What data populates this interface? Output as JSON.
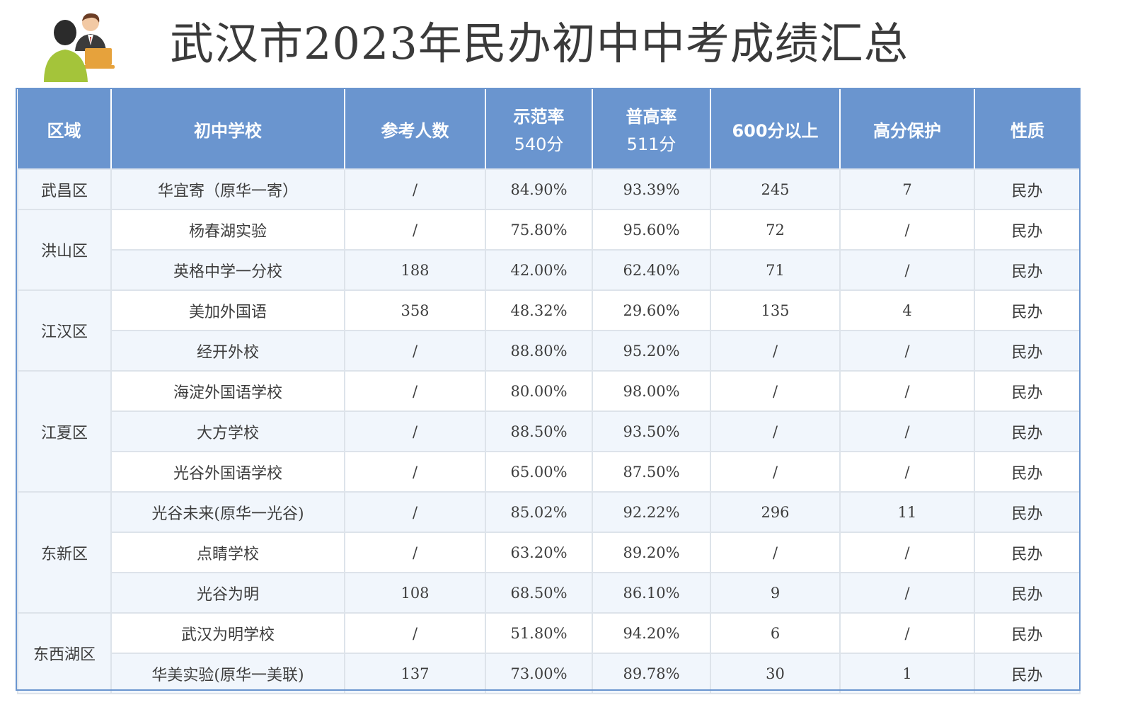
{
  "title": "武汉市2023年民办初中中考成绩汇总",
  "logo_icon": "people-with-laptop-icon",
  "colors": {
    "header_bg": "#6a95cf",
    "header_text": "#ffffff",
    "shade_row": "#f1f6fc",
    "body_text": "#3d3d3d"
  },
  "table": {
    "headers": [
      {
        "label": "区域",
        "sub": ""
      },
      {
        "label": "初中学校",
        "sub": ""
      },
      {
        "label": "参考人数",
        "sub": ""
      },
      {
        "label": "示范率",
        "sub": "540分"
      },
      {
        "label": "普高率",
        "sub": "511分"
      },
      {
        "label": "600分以上",
        "sub": ""
      },
      {
        "label": "高分保护",
        "sub": ""
      },
      {
        "label": "性质",
        "sub": ""
      }
    ],
    "districts": [
      {
        "name": "武昌区",
        "rows": [
          {
            "school": "华宜寄（原华一寄）",
            "count": "/",
            "demo": "84.90%",
            "general": "93.39%",
            "above600": "245",
            "protect": "7",
            "type": "民办"
          }
        ]
      },
      {
        "name": "洪山区",
        "rows": [
          {
            "school": "杨春湖实验",
            "count": "/",
            "demo": "75.80%",
            "general": "95.60%",
            "above600": "72",
            "protect": "/",
            "type": "民办"
          },
          {
            "school": "英格中学一分校",
            "count": "188",
            "demo": "42.00%",
            "general": "62.40%",
            "above600": "71",
            "protect": "/",
            "type": "民办"
          }
        ]
      },
      {
        "name": "江汉区",
        "rows": [
          {
            "school": "美加外国语",
            "count": "358",
            "demo": "48.32%",
            "general": "29.60%",
            "above600": "135",
            "protect": "4",
            "type": "民办"
          },
          {
            "school": "经开外校",
            "count": "/",
            "demo": "88.80%",
            "general": "95.20%",
            "above600": "/",
            "protect": "/",
            "type": "民办"
          }
        ]
      },
      {
        "name": "江夏区",
        "rows": [
          {
            "school": "海淀外国语学校",
            "count": "/",
            "demo": "80.00%",
            "general": "98.00%",
            "above600": "/",
            "protect": "/",
            "type": "民办"
          },
          {
            "school": "大方学校",
            "count": "/",
            "demo": "88.50%",
            "general": "93.50%",
            "above600": "/",
            "protect": "/",
            "type": "民办"
          },
          {
            "school": "光谷外国语学校",
            "count": "/",
            "demo": "65.00%",
            "general": "87.50%",
            "above600": "/",
            "protect": "/",
            "type": "民办"
          }
        ]
      },
      {
        "name": "东新区",
        "rows": [
          {
            "school": "光谷未来(原华一光谷)",
            "count": "/",
            "demo": "85.02%",
            "general": "92.22%",
            "above600": "296",
            "protect": "11",
            "type": "民办"
          },
          {
            "school": "点睛学校",
            "count": "/",
            "demo": "63.20%",
            "general": "89.20%",
            "above600": "/",
            "protect": "/",
            "type": "民办"
          },
          {
            "school": "光谷为明",
            "count": "108",
            "demo": "68.50%",
            "general": "86.10%",
            "above600": "9",
            "protect": "/",
            "type": "民办"
          }
        ]
      },
      {
        "name": "东西湖区",
        "rows": [
          {
            "school": "武汉为明学校",
            "count": "/",
            "demo": "51.80%",
            "general": "94.20%",
            "above600": "6",
            "protect": "/",
            "type": "民办"
          },
          {
            "school": "华美实验(原华一美联)",
            "count": "137",
            "demo": "73.00%",
            "general": "89.78%",
            "above600": "30",
            "protect": "1",
            "type": "民办"
          }
        ]
      }
    ]
  }
}
